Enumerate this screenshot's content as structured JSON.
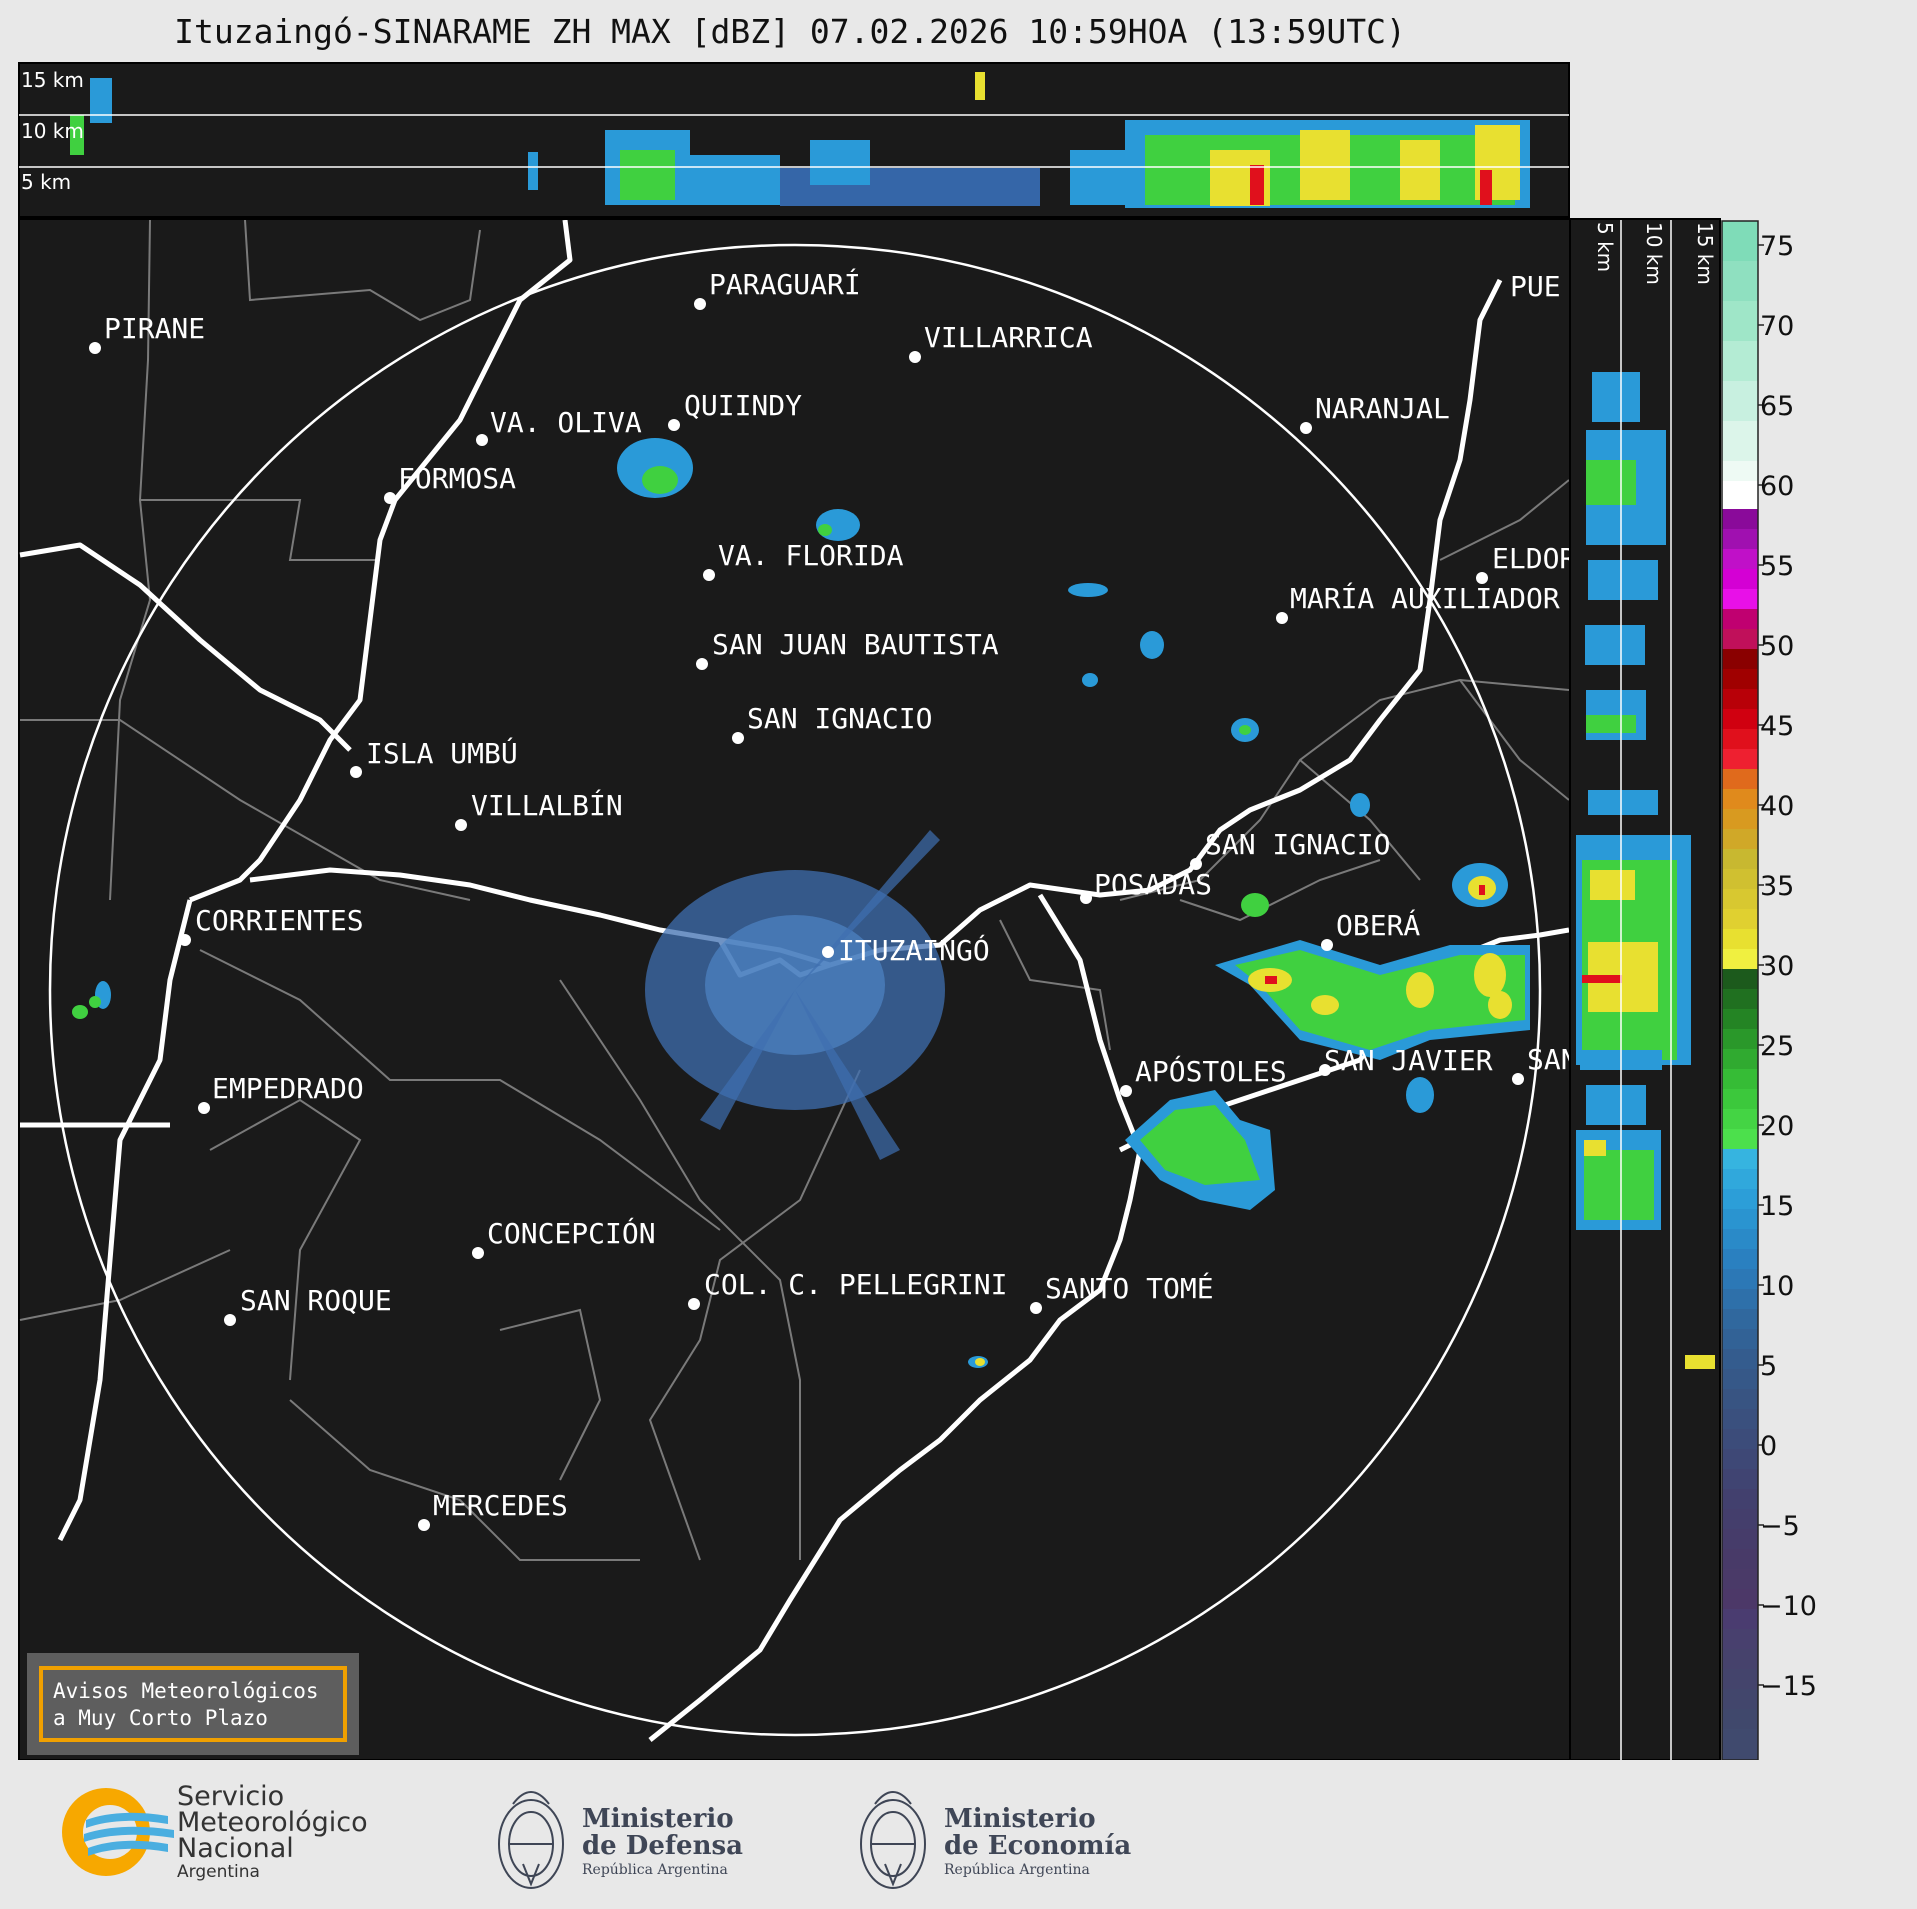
{
  "title": "Ituzaingó-SINARAME ZH MAX [dBZ] 07.02.2026 10:59HOA (13:59UTC)",
  "top_profile": {
    "height_labels": [
      "15 km",
      "10 km",
      "5 km"
    ]
  },
  "side_profile": {
    "height_labels": [
      "5 km",
      "10 km",
      "15 km"
    ]
  },
  "colorbar": {
    "ticks": [
      "75",
      "70",
      "65",
      "60",
      "55",
      "50",
      "45",
      "40",
      "35",
      "30",
      "25",
      "20",
      "15",
      "10",
      "5",
      "0",
      "−5",
      "−10",
      "−15"
    ],
    "colors": {
      "pink_purple": "#d400d4",
      "red": "#e0101c",
      "orange": "#e08a1c",
      "yellow": "#e8e030",
      "green": "#40d040",
      "blue": "#2a9ad8",
      "navy": "#384a80"
    }
  },
  "cities": [
    {
      "name": "PIRANE"
    },
    {
      "name": "PARAGUARÍ"
    },
    {
      "name": "VILLARRICA"
    },
    {
      "name": "QUIINDY"
    },
    {
      "name": "VA. OLIVA"
    },
    {
      "name": "NARANJAL"
    },
    {
      "name": "FORMOSA"
    },
    {
      "name": "VA. FLORIDA"
    },
    {
      "name": "ELDOR"
    },
    {
      "name": "MARÍA AUXILIADOR"
    },
    {
      "name": "SAN JUAN BAUTISTA"
    },
    {
      "name": "SAN IGNACIO"
    },
    {
      "name": "ISLA UMBÚ"
    },
    {
      "name": "VILLALBÍN"
    },
    {
      "name": "SAN IGNACIO"
    },
    {
      "name": "POSADAS"
    },
    {
      "name": "CORRIENTES"
    },
    {
      "name": "ITUZAINGÓ"
    },
    {
      "name": "OBERÁ"
    },
    {
      "name": "APÓSTOLES"
    },
    {
      "name": "SAN JAVIER"
    },
    {
      "name": "SAN"
    },
    {
      "name": "EMPEDRADO"
    },
    {
      "name": "CONCEPCIÓN"
    },
    {
      "name": "COL. C. PELLEGRINI"
    },
    {
      "name": "SANTO TOMÉ"
    },
    {
      "name": "SAN ROQUE"
    },
    {
      "name": "MERCEDES"
    },
    {
      "name": "PUE"
    }
  ],
  "warning_box": {
    "line1": "Avisos Meteorológicos",
    "line2": "a Muy Corto Plazo"
  },
  "footer": {
    "smn": {
      "line1": "Servicio",
      "line2": "Meteorológico",
      "line3": "Nacional",
      "line4": "Argentina"
    },
    "defensa": {
      "line1": "Ministerio",
      "line2": "de Defensa",
      "line3": "República Argentina"
    },
    "economia": {
      "line1": "Ministerio",
      "line2": "de Economía",
      "line3": "República Argentina"
    }
  }
}
